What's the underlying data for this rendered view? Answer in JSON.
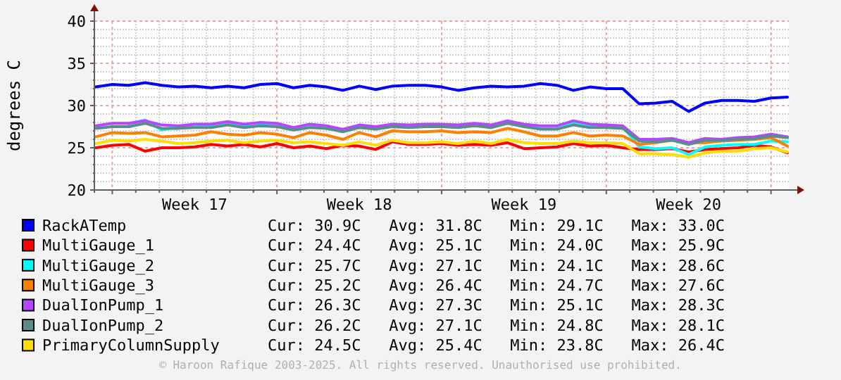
{
  "chart_data": {
    "type": "line",
    "ylabel": "degrees C",
    "categories": [
      null,
      null,
      null,
      null,
      null,
      null,
      "Week 17",
      null,
      null,
      null,
      null,
      null,
      null,
      null,
      null,
      null,
      "Week 18",
      null,
      null,
      null,
      null,
      null,
      null,
      null,
      null,
      null,
      "Week 19",
      null,
      null,
      null,
      null,
      null,
      null,
      null,
      null,
      null,
      "Week 20",
      null,
      null,
      null,
      null,
      null,
      null
    ],
    "ylim": [
      20,
      40
    ],
    "yticks": [
      20,
      {
        "value": 21,
        "label": null
      },
      {
        "value": 22,
        "label": null
      },
      {
        "value": 23,
        "label": null
      },
      {
        "value": 24,
        "label": null
      },
      25,
      {
        "value": 26,
        "label": null
      },
      {
        "value": 27,
        "label": null
      },
      {
        "value": 28,
        "label": null
      },
      {
        "value": 29,
        "label": null
      },
      30,
      {
        "value": 31,
        "label": null
      },
      {
        "value": 32,
        "label": null
      },
      {
        "value": 33,
        "label": null
      },
      {
        "value": 34,
        "label": null
      },
      35,
      {
        "value": 36,
        "label": null
      },
      {
        "value": 37,
        "label": null
      },
      {
        "value": 38,
        "label": null
      },
      {
        "value": 39,
        "label": null
      },
      40
    ],
    "grid": true,
    "legend": "bottom",
    "line_style": "solid",
    "series": [
      {
        "name": "RackATemp",
        "color": "#0000ff",
        "values": [
          32.2,
          32.5,
          32.4,
          32.7,
          32.4,
          32.2,
          32.3,
          32.1,
          32.3,
          32.1,
          32.5,
          32.6,
          32.1,
          32.4,
          32.2,
          31.8,
          32.3,
          31.9,
          32.3,
          32.4,
          32.4,
          32.2,
          31.8,
          32.1,
          32.3,
          32.2,
          32.3,
          32.6,
          32.4,
          31.8,
          32.2,
          32.0,
          32.0,
          30.2,
          30.3,
          30.5,
          29.3,
          30.3,
          30.6,
          30.6,
          30.5,
          30.9,
          31.0
        ]
      },
      {
        "name": "MultiGauge_1",
        "color": "#ff0000",
        "values": [
          25.0,
          25.3,
          25.4,
          24.6,
          25.0,
          25.0,
          25.1,
          25.4,
          25.2,
          25.4,
          25.1,
          25.5,
          25.0,
          25.2,
          24.9,
          25.3,
          25.2,
          24.8,
          25.7,
          25.4,
          25.4,
          25.5,
          25.3,
          25.4,
          25.3,
          25.6,
          24.9,
          25.0,
          25.1,
          25.5,
          25.2,
          25.3,
          25.0,
          24.8,
          24.8,
          24.9,
          24.5,
          24.8,
          24.9,
          25.0,
          25.3,
          25.1,
          24.4
        ]
      },
      {
        "name": "MultiGauge_2",
        "color": "#00ffff",
        "values": [
          null,
          null,
          27.8,
          28.3,
          27.1,
          27.5,
          27.7,
          27.7,
          28.0,
          27.5,
          27.9,
          27.6,
          27.2,
          27.6,
          27.3,
          27.0,
          27.4,
          27.3,
          27.7,
          27.5,
          27.7,
          27.6,
          27.6,
          27.7,
          27.4,
          28.0,
          27.6,
          27.3,
          27.3,
          28.0,
          27.6,
          27.5,
          27.5,
          25.1,
          24.9,
          25.0,
          24.2,
          25.1,
          25.3,
          25.4,
          25.4,
          25.8,
          25.7
        ]
      },
      {
        "name": "MultiGauge_3",
        "color": "#ff8000",
        "values": [
          26.3,
          26.8,
          26.7,
          26.8,
          26.3,
          26.4,
          26.5,
          26.9,
          26.6,
          26.5,
          26.8,
          26.6,
          26.2,
          26.8,
          26.5,
          26.0,
          26.8,
          26.3,
          27.0,
          26.9,
          26.9,
          27.0,
          26.8,
          26.9,
          26.8,
          27.3,
          26.9,
          26.4,
          26.4,
          26.8,
          26.4,
          26.5,
          26.4,
          25.4,
          25.6,
          25.9,
          25.6,
          25.6,
          25.8,
          25.9,
          26.0,
          26.2,
          25.2
        ]
      },
      {
        "name": "DualIonPump_1",
        "color": "#b845ff",
        "values": [
          27.6,
          27.9,
          27.9,
          28.2,
          27.7,
          27.6,
          27.8,
          27.8,
          28.1,
          27.8,
          28.0,
          27.9,
          27.4,
          27.8,
          27.6,
          27.2,
          27.7,
          27.5,
          27.8,
          27.7,
          27.8,
          27.8,
          27.7,
          27.9,
          27.7,
          28.2,
          27.8,
          27.6,
          27.6,
          28.2,
          27.8,
          27.7,
          27.6,
          26.0,
          26.0,
          26.1,
          25.6,
          26.1,
          26.0,
          26.2,
          26.3,
          26.6,
          26.3
        ]
      },
      {
        "name": "DualIonPump_2",
        "color": "#5a8c8c",
        "values": [
          27.3,
          27.5,
          27.5,
          27.9,
          27.3,
          27.3,
          27.4,
          27.4,
          27.7,
          27.4,
          27.6,
          27.5,
          27.1,
          27.4,
          27.3,
          26.9,
          27.4,
          27.2,
          27.5,
          27.4,
          27.5,
          27.5,
          27.4,
          27.6,
          27.4,
          27.9,
          27.5,
          27.2,
          27.2,
          27.7,
          27.4,
          27.4,
          27.3,
          25.8,
          25.7,
          25.9,
          25.4,
          25.9,
          25.9,
          26.0,
          26.1,
          26.4,
          26.2
        ]
      },
      {
        "name": "PrimaryColumnSupply",
        "color": "#ffdd00",
        "values": [
          25.5,
          25.9,
          25.8,
          26.0,
          25.8,
          25.5,
          25.6,
          25.8,
          25.9,
          25.6,
          25.8,
          25.9,
          25.6,
          25.7,
          25.5,
          25.3,
          25.7,
          25.3,
          25.9,
          25.6,
          25.6,
          25.7,
          25.5,
          25.8,
          25.5,
          26.0,
          25.6,
          25.5,
          25.5,
          25.8,
          25.6,
          25.6,
          25.5,
          24.3,
          24.3,
          24.2,
          23.9,
          24.4,
          24.6,
          24.6,
          24.9,
          25.0,
          24.5
        ]
      }
    ],
    "annotations": [
      "Cur: 30.9C   Avg: 31.8C   Min: 29.1C   Max: 33.0C",
      "Cur: 24.4C   Avg: 25.1C   Min: 24.0C   Max: 25.9C",
      "Cur: 25.7C   Avg: 27.1C   Min: 24.1C   Max: 28.6C",
      "Cur: 25.2C   Avg: 26.4C   Min: 24.7C   Max: 27.6C",
      "Cur: 26.3C   Avg: 27.3C   Min: 25.1C   Max: 28.3C",
      "Cur: 26.2C   Avg: 27.1C   Min: 24.8C   Max: 28.1C",
      "Cur: 24.5C   Avg: 25.4C   Min: 23.8C   Max: 26.4C",
      "© Haroon Rafique 2003-2025. All rights reserved. Unauthorised use prohibited."
    ]
  }
}
